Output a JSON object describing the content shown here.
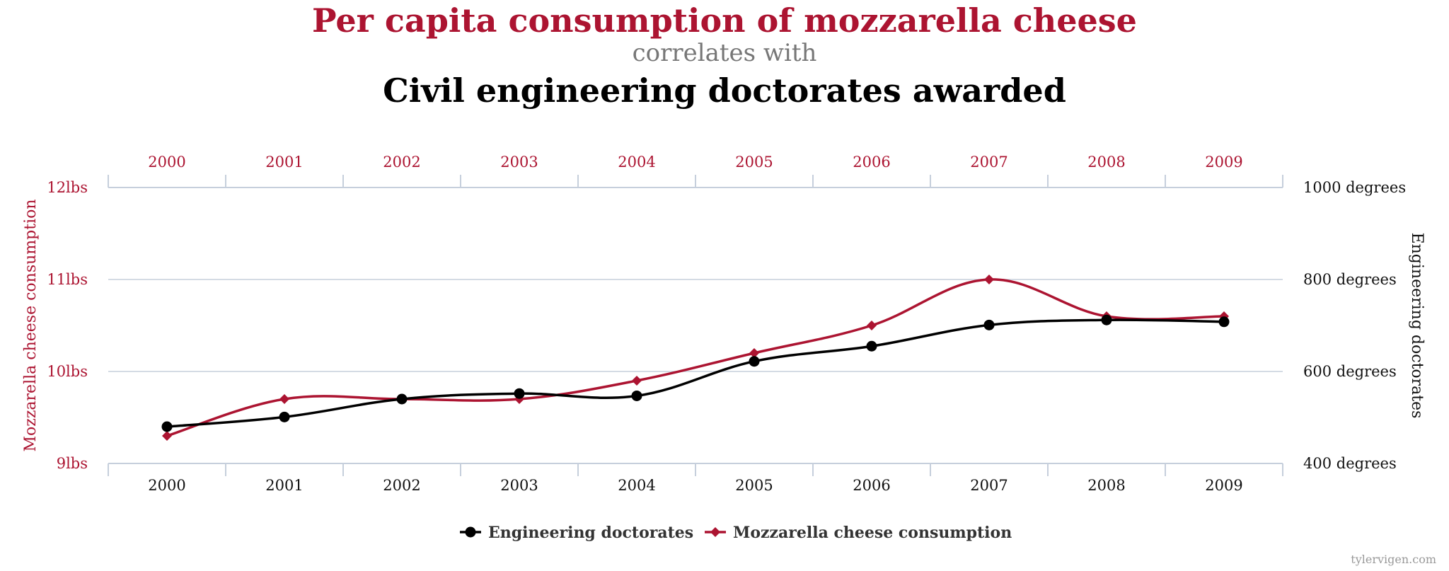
{
  "colors": {
    "mozzarella": "#ac1431",
    "engineering": "#000000",
    "subtitle": "#777777",
    "grid": "#c6cfdc",
    "axis_text": "#222222",
    "legend_text": "#333333",
    "credit": "#999999"
  },
  "credit": "tylervigen.com",
  "chart_data": {
    "type": "line",
    "title": "Per capita consumption of mozzarella cheese",
    "subtitle": "correlates with",
    "title2": "Civil engineering doctorates awarded",
    "x": [
      "2000",
      "2001",
      "2002",
      "2003",
      "2004",
      "2005",
      "2006",
      "2007",
      "2008",
      "2009"
    ],
    "xlabels_top": [
      "2000",
      "2001",
      "2002",
      "2003",
      "2004",
      "2005",
      "2006",
      "2007",
      "2008",
      "2009"
    ],
    "xlabels_bottom": [
      "2000",
      "2001",
      "2002",
      "2003",
      "2004",
      "2005",
      "2006",
      "2007",
      "2008",
      "2009"
    ],
    "y_left": {
      "label": "Mozzarella cheese consumption",
      "range": [
        9,
        12
      ],
      "ticks": [
        9,
        10,
        11,
        12
      ],
      "tick_labels": [
        "9lbs",
        "10lbs",
        "11lbs",
        "12lbs"
      ]
    },
    "y_right": {
      "label": "Engineering doctorates",
      "range": [
        400,
        1000
      ],
      "ticks": [
        400,
        600,
        800,
        1000
      ],
      "tick_labels": [
        "400 degrees",
        "600 degrees",
        "800 degrees",
        "1000 degrees"
      ]
    },
    "grid": true,
    "legend_position": "bottom-center",
    "series": [
      {
        "name": "Engineering doctorates",
        "axis": "right",
        "marker": "circle",
        "color": "#000000",
        "values": [
          480,
          501,
          540,
          552,
          547,
          622,
          655,
          701,
          712,
          708
        ]
      },
      {
        "name": "Mozzarella cheese consumption",
        "axis": "left",
        "marker": "diamond",
        "color": "#ac1431",
        "values": [
          9.3,
          9.7,
          9.7,
          9.7,
          9.9,
          10.2,
          10.5,
          11.0,
          10.6,
          10.6
        ]
      }
    ]
  }
}
